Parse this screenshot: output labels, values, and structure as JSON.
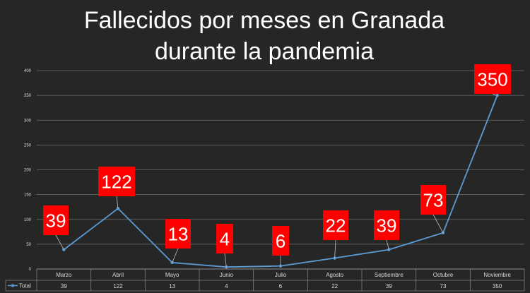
{
  "chart_data": {
    "type": "line",
    "title_lines": [
      "Fallecidos por meses en Granada",
      "durante la pandemia"
    ],
    "categories": [
      "Marzo",
      "Abril",
      "Mayo",
      "Junio",
      "Julio",
      "Agosto",
      "Septiembre",
      "Octubre",
      "Noviembre"
    ],
    "series": [
      {
        "name": "Total",
        "values": [
          39,
          122,
          13,
          4,
          6,
          22,
          39,
          73,
          350
        ]
      }
    ],
    "ylim": [
      0,
      400
    ],
    "yticks": [
      0,
      50,
      100,
      150,
      200,
      250,
      300,
      350,
      400
    ],
    "grid": true,
    "legend": "bottom-left data table",
    "data_labels": [
      "39",
      "122",
      "13",
      "4",
      "6",
      "22",
      "39",
      "73",
      "350"
    ],
    "table_values": [
      "39",
      "122",
      "13",
      "4",
      "6",
      "22",
      "39",
      "73",
      "350"
    ],
    "colors": {
      "background": "#262626",
      "line": "#5b9bd5",
      "callout": "#ff0000",
      "grid": "#6e6e6e",
      "text": "#ffffff"
    }
  }
}
